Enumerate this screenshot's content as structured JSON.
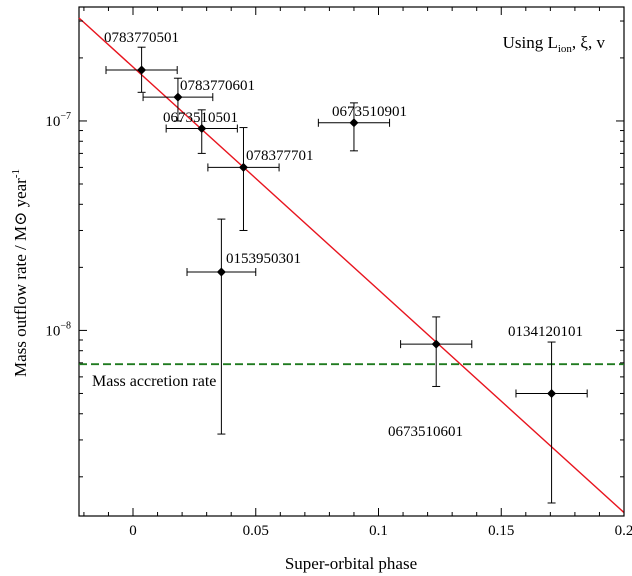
{
  "chart_data": {
    "type": "scatter",
    "xlabel": "Super-orbital phase",
    "ylabel": "Mass outflow rate / M⊙ year⁻¹",
    "annotation": "Using Lion, ξ, v",
    "xlim": [
      -0.022,
      0.2
    ],
    "ylim": [
      1.3e-09,
      3.5e-07
    ],
    "yscale": "log",
    "x_ticks": [
      {
        "value": 0,
        "label": "0"
      },
      {
        "value": 0.05,
        "label": "0.05"
      },
      {
        "value": 0.1,
        "label": "0.1"
      },
      {
        "value": 0.15,
        "label": "0.15"
      },
      {
        "value": 0.2,
        "label": "0.2"
      }
    ],
    "y_ticks": [
      {
        "value": 1e-08,
        "base": "10",
        "exp": "−8"
      },
      {
        "value": 1e-07,
        "base": "10",
        "exp": "−7"
      }
    ],
    "points": [
      {
        "label": "0783770501",
        "x": 0.0035,
        "xerr": 0.0145,
        "y": 1.75e-07,
        "ylo": 1.37e-07,
        "yhi": 2.25e-07
      },
      {
        "label": "0783770601",
        "x": 0.0183,
        "xerr": 0.0142,
        "y": 1.3e-07,
        "ylo": 1e-07,
        "yhi": 1.6e-07
      },
      {
        "label": "0673510501",
        "x": 0.028,
        "xerr": 0.0145,
        "y": 9.2e-08,
        "ylo": 7e-08,
        "yhi": 1.13e-07
      },
      {
        "label": "078377701",
        "x": 0.045,
        "xerr": 0.0145,
        "y": 6e-08,
        "ylo": 3e-08,
        "yhi": 9.3e-08
      },
      {
        "label": "0673510901",
        "x": 0.09,
        "xerr": 0.0145,
        "y": 9.8e-08,
        "ylo": 7.2e-08,
        "yhi": 1.22e-07
      },
      {
        "label": "0153950301",
        "x": 0.036,
        "xerr": 0.014,
        "y": 1.9e-08,
        "ylo": 3.2e-09,
        "yhi": 3.4e-08
      },
      {
        "label": "0673510601",
        "x": 0.1235,
        "xerr": 0.0145,
        "y": 8.6e-09,
        "ylo": 5.4e-09,
        "yhi": 1.16e-08
      },
      {
        "label": "0134120101",
        "x": 0.1705,
        "xerr": 0.0145,
        "y": 5e-09,
        "ylo": 1.5e-09,
        "yhi": 8.8e-09
      }
    ],
    "fit_line": {
      "x": [
        -0.022,
        0.2
      ],
      "y": [
        3.1e-07,
        1.35e-09
      ],
      "color": "#e8141e"
    },
    "reference_line": {
      "label": "Mass accretion rate",
      "y": 6.9e-09,
      "color": "#1f7a1f",
      "style": "dashed"
    },
    "marker_color": "#000000",
    "grid": false,
    "legend": "none"
  }
}
